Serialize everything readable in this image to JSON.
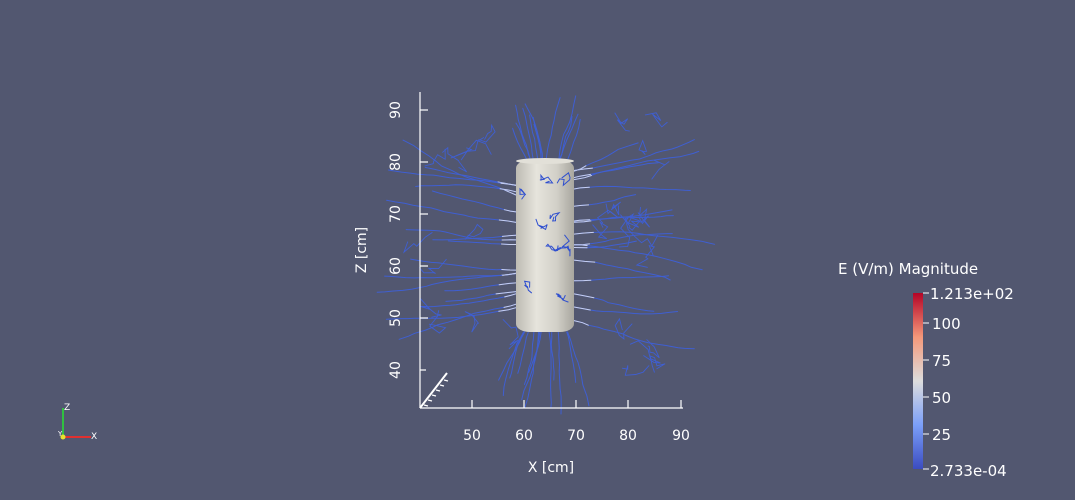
{
  "scene": {
    "background": "#525770",
    "object": "cylinder",
    "object_color": "#d6d4cc",
    "streamline_color": "#3f5fd2"
  },
  "axes": {
    "x_label": "X [cm]",
    "z_label": "Z [cm]",
    "x_ticks": [
      "50",
      "60",
      "70",
      "80",
      "90"
    ],
    "z_ticks": [
      "40",
      "50",
      "60",
      "70",
      "80",
      "90"
    ]
  },
  "colorbar": {
    "title": "E (V/m) Magnitude",
    "max_label": "1.213e+02",
    "min_label": "2.733e-04",
    "ticks": [
      "100",
      "75",
      "50",
      "25"
    ],
    "color_low": "#3b4cc0",
    "color_mid": "#dddddd",
    "color_high": "#b40426"
  },
  "orientation_axes": {
    "x": "X",
    "y": "Y",
    "z": "Z",
    "x_color": "#e03030",
    "y_color": "#e8e030",
    "z_color": "#30c040"
  }
}
